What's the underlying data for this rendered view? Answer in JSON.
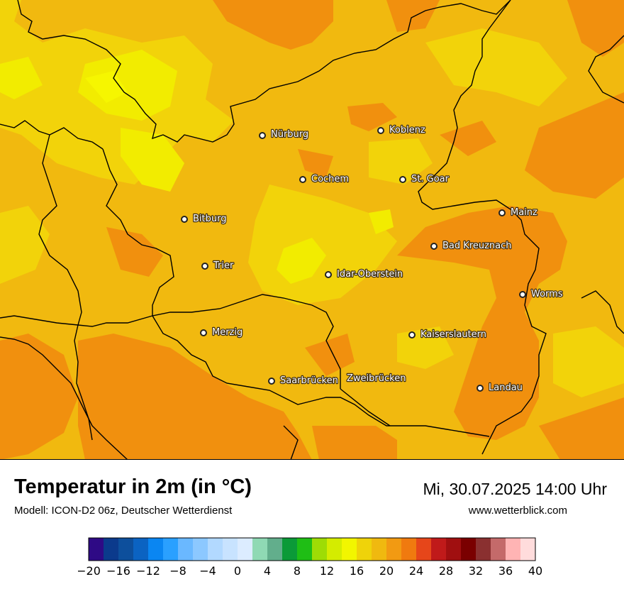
{
  "title": "Temperatur in 2m (in °C)",
  "model": "Modell: ICON-D2 06z, Deutscher Wetterdienst",
  "datetime": "Mi, 30.07.2025 14:00 Uhr",
  "website": "www.wetterblick.com",
  "cities": [
    {
      "name": "Nürburg"
    },
    {
      "name": "Koblenz"
    },
    {
      "name": "Cochem"
    },
    {
      "name": "St. Goar"
    },
    {
      "name": "Mainz"
    },
    {
      "name": "Bitburg"
    },
    {
      "name": "Bad Kreuznach"
    },
    {
      "name": "Trier"
    },
    {
      "name": "Idar-Oberstein"
    },
    {
      "name": "Worms"
    },
    {
      "name": "Merzig"
    },
    {
      "name": "Kaiserslautern"
    },
    {
      "name": "Saarbrücken"
    },
    {
      "name": "Zweibrücken"
    },
    {
      "name": "Landau"
    }
  ],
  "legend": {
    "min": -20,
    "max": 40,
    "step": 2,
    "tick_labels": [
      "−20",
      "−16",
      "−12",
      "−8",
      "−4",
      "0",
      "4",
      "8",
      "12",
      "16",
      "20",
      "24",
      "28",
      "32",
      "36",
      "40"
    ],
    "colors": [
      "#2e0a85",
      "#0b3a8c",
      "#0d4f9c",
      "#0b63c2",
      "#0a86f2",
      "#2aa0ff",
      "#6ab8ff",
      "#8cc8ff",
      "#b2d9ff",
      "#c8e3ff",
      "#dcecff",
      "#8fd9b4",
      "#62ae8c",
      "#0b9a38",
      "#1fbe15",
      "#9edc05",
      "#d4ec00",
      "#f2f600",
      "#efd30a",
      "#f0b90f",
      "#f29a12",
      "#f07a0f",
      "#e6461a",
      "#c01a1a",
      "#a00f10",
      "#7a0000",
      "#8a3030",
      "#c46a6a",
      "#ffb4b4",
      "#ffdcdc"
    ]
  },
  "colors": {
    "base": "#f1b90f",
    "hot": "#f1900e",
    "warm": "#f4c410",
    "mild": "#f2d30a",
    "cool": "#f2ec00",
    "coolest": "#f6f600"
  }
}
